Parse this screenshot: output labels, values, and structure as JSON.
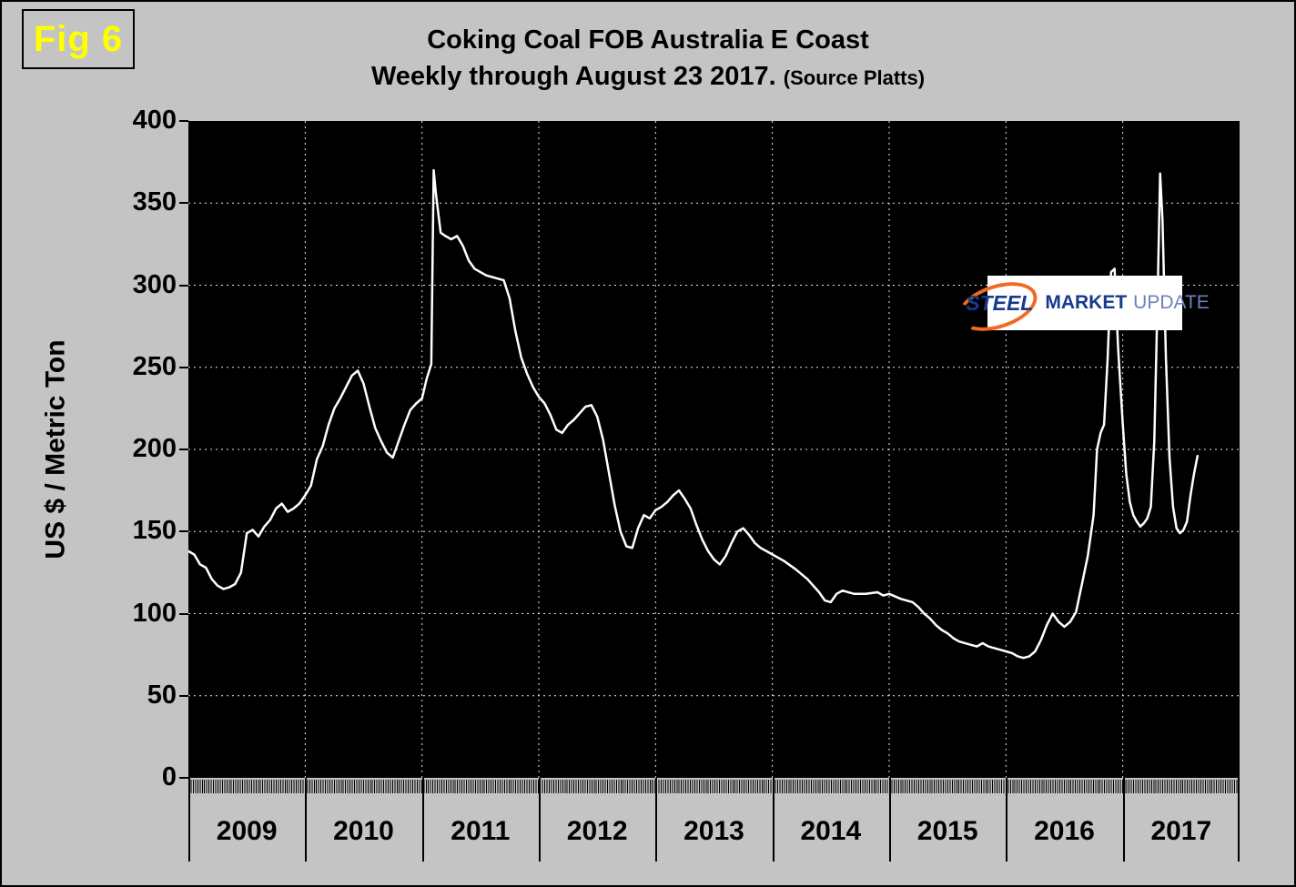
{
  "figure_label": "Fig 6",
  "title": {
    "line1": "Coking Coal FOB Australia E Coast",
    "line2": "Weekly through August 23 2017.",
    "source": "(Source Platts)"
  },
  "y_axis_title": "US $ / Metric Ton",
  "logo": {
    "steel": "STEEL",
    "market": "MARKET",
    "update": "UPDATE"
  },
  "colors": {
    "page_background": "#c4c4c4",
    "plot_background": "#000000",
    "line": "#ffffff",
    "fig_label": "#ffff00",
    "logo_orange": "#f26a21",
    "logo_blue": "#173a8c"
  },
  "chart_data": {
    "type": "line",
    "title": "Coking Coal FOB Australia E Coast Weekly through August 23 2017. (Source Platts)",
    "xlabel": "",
    "ylabel": "US $ / Metric Ton",
    "ylim": [
      0,
      400
    ],
    "xlim": [
      2009.0,
      2018.0
    ],
    "y_ticks": [
      0,
      50,
      100,
      150,
      200,
      250,
      300,
      350,
      400
    ],
    "x_years": [
      "2009",
      "2010",
      "2011",
      "2012",
      "2013",
      "2014",
      "2015",
      "2016",
      "2017"
    ],
    "grid": "dotted-white-on-black",
    "legend": false,
    "series": [
      {
        "name": "Coking Coal FOB Australia E Coast (US$ / metric ton)",
        "x": [
          2009.0,
          2009.05,
          2009.1,
          2009.15,
          2009.2,
          2009.25,
          2009.3,
          2009.35,
          2009.4,
          2009.45,
          2009.5,
          2009.55,
          2009.6,
          2009.65,
          2009.7,
          2009.75,
          2009.8,
          2009.85,
          2009.9,
          2009.95,
          2010.0,
          2010.05,
          2010.1,
          2010.15,
          2010.2,
          2010.25,
          2010.3,
          2010.35,
          2010.4,
          2010.45,
          2010.5,
          2010.55,
          2010.6,
          2010.65,
          2010.7,
          2010.75,
          2010.8,
          2010.85,
          2010.9,
          2010.95,
          2011.0,
          2011.04,
          2011.08,
          2011.1,
          2011.12,
          2011.16,
          2011.2,
          2011.25,
          2011.3,
          2011.35,
          2011.4,
          2011.45,
          2011.5,
          2011.55,
          2011.6,
          2011.65,
          2011.7,
          2011.75,
          2011.8,
          2011.85,
          2011.9,
          2011.95,
          2012.0,
          2012.05,
          2012.1,
          2012.15,
          2012.2,
          2012.25,
          2012.3,
          2012.35,
          2012.4,
          2012.45,
          2012.5,
          2012.55,
          2012.6,
          2012.65,
          2012.7,
          2012.75,
          2012.8,
          2012.85,
          2012.9,
          2012.95,
          2013.0,
          2013.05,
          2013.1,
          2013.15,
          2013.2,
          2013.25,
          2013.3,
          2013.35,
          2013.4,
          2013.45,
          2013.5,
          2013.55,
          2013.6,
          2013.65,
          2013.7,
          2013.75,
          2013.8,
          2013.85,
          2013.9,
          2013.95,
          2014.0,
          2014.1,
          2014.2,
          2014.3,
          2014.35,
          2014.4,
          2014.45,
          2014.5,
          2014.55,
          2014.6,
          2014.7,
          2014.8,
          2014.9,
          2014.95,
          2015.0,
          2015.1,
          2015.2,
          2015.25,
          2015.3,
          2015.35,
          2015.4,
          2015.45,
          2015.5,
          2015.55,
          2015.6,
          2015.7,
          2015.75,
          2015.8,
          2015.85,
          2015.9,
          2015.95,
          2016.0,
          2016.05,
          2016.1,
          2016.15,
          2016.2,
          2016.25,
          2016.3,
          2016.35,
          2016.4,
          2016.45,
          2016.5,
          2016.55,
          2016.6,
          2016.65,
          2016.7,
          2016.75,
          2016.78,
          2016.81,
          2016.84,
          2016.87,
          2016.9,
          2016.93,
          2016.96,
          2017.0,
          2017.03,
          2017.06,
          2017.09,
          2017.12,
          2017.15,
          2017.18,
          2017.21,
          2017.24,
          2017.27,
          2017.3,
          2017.32,
          2017.34,
          2017.37,
          2017.4,
          2017.43,
          2017.46,
          2017.49,
          2017.52,
          2017.55,
          2017.58,
          2017.61,
          2017.64
        ],
        "values": [
          138,
          136,
          130,
          128,
          121,
          117,
          115,
          116,
          118,
          125,
          149,
          151,
          147,
          153,
          157,
          164,
          167,
          162,
          164,
          167,
          172,
          178,
          194,
          202,
          215,
          225,
          231,
          238,
          245,
          248,
          240,
          226,
          213,
          205,
          198,
          195,
          205,
          215,
          224,
          228,
          231,
          243,
          252,
          370,
          355,
          332,
          330,
          328,
          330,
          324,
          315,
          310,
          308,
          306,
          305,
          304,
          303,
          292,
          272,
          256,
          246,
          238,
          232,
          228,
          221,
          212,
          210,
          215,
          218,
          222,
          226,
          227,
          220,
          206,
          186,
          166,
          150,
          141,
          140,
          152,
          160,
          158,
          163,
          165,
          168,
          172,
          175,
          170,
          164,
          154,
          145,
          138,
          133,
          130,
          135,
          143,
          150,
          152,
          148,
          143,
          140,
          138,
          136,
          132,
          127,
          121,
          117,
          113,
          108,
          107,
          112,
          114,
          112,
          112,
          113,
          111,
          112,
          109,
          107,
          104,
          100,
          97,
          93,
          90,
          88,
          85,
          83,
          81,
          80,
          82,
          80,
          79,
          78,
          77,
          76,
          74,
          73,
          74,
          77,
          84,
          93,
          100,
          95,
          92,
          95,
          101,
          118,
          135,
          160,
          200,
          210,
          215,
          255,
          308,
          310,
          262,
          215,
          185,
          168,
          160,
          156,
          153,
          155,
          158,
          165,
          205,
          300,
          368,
          340,
          255,
          195,
          165,
          152,
          149,
          151,
          156,
          172,
          185,
          196
        ]
      }
    ]
  }
}
